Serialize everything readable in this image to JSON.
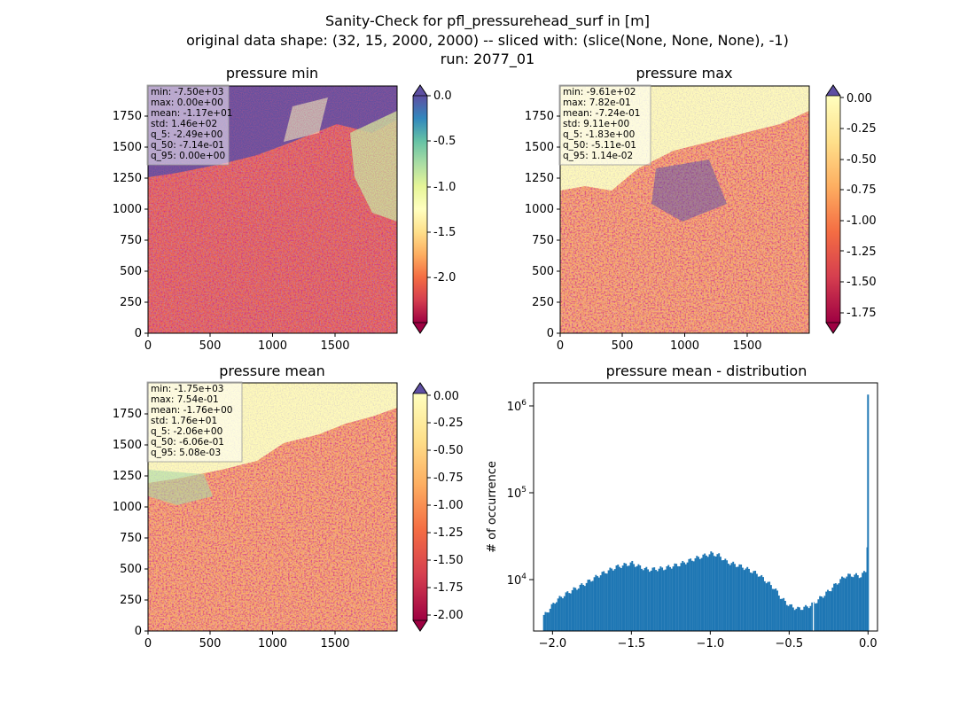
{
  "figure": {
    "title_line1": "Sanity-Check for pfl_pressurehead_surf in [m]",
    "title_line2": "original data shape: (32, 15, 2000, 2000) -- sliced with: (slice(None, None, None), -1)",
    "title_line3": "run: 2077_01"
  },
  "chart_data": [
    {
      "type": "heatmap",
      "title": "pressure min",
      "xlim": [
        0,
        2000
      ],
      "ylim": [
        0,
        2000
      ],
      "x_ticks": [
        0,
        500,
        1000,
        1500
      ],
      "y_ticks": [
        0,
        250,
        500,
        750,
        1000,
        1250,
        1500,
        1750
      ],
      "colormap": "Spectral",
      "extend": "both",
      "colorbar_range": [
        -2.5,
        0.0
      ],
      "colorbar_ticks": [
        "0.0",
        "-0.5",
        "-1.0",
        "-1.5",
        "-2.0"
      ],
      "stats": [
        "min: -7.50e+03",
        "max: 0.00e+00",
        "mean: -1.17e+01",
        "std: 1.46e+02",
        "q_5: -2.49e+00",
        "q_50: -7.14e-01",
        "q_95: 0.00e+00"
      ]
    },
    {
      "type": "heatmap",
      "title": "pressure max",
      "xlim": [
        0,
        2000
      ],
      "ylim": [
        0,
        2000
      ],
      "x_ticks": [
        0,
        500,
        1000,
        1500
      ],
      "y_ticks": [
        0,
        250,
        500,
        750,
        1000,
        1250,
        1500,
        1750
      ],
      "colormap": "Spectral",
      "extend": "both",
      "colorbar_range": [
        -1.83,
        0.02
      ],
      "colorbar_ticks": [
        "0.00",
        "-0.25",
        "-0.50",
        "-0.75",
        "-1.00",
        "-1.25",
        "-1.50",
        "-1.75"
      ],
      "stats": [
        "min: -9.61e+02",
        "max: 7.82e-01",
        "mean: -7.24e-01",
        "std: 9.11e+00",
        "q_5: -1.83e+00",
        "q_50: -5.11e-01",
        "q_95: 1.14e-02"
      ]
    },
    {
      "type": "heatmap",
      "title": "pressure mean",
      "xlim": [
        0,
        2000
      ],
      "ylim": [
        0,
        2000
      ],
      "x_ticks": [
        0,
        500,
        1000,
        1500
      ],
      "y_ticks": [
        0,
        250,
        500,
        750,
        1000,
        1250,
        1500,
        1750
      ],
      "colormap": "Spectral",
      "extend": "both",
      "colorbar_range": [
        -2.06,
        0.01
      ],
      "colorbar_ticks": [
        "0.00",
        "-0.25",
        "-0.50",
        "-0.75",
        "-1.00",
        "-1.25",
        "-1.50",
        "-1.75",
        "-2.00"
      ],
      "stats": [
        "min: -1.75e+03",
        "max: 7.54e-01",
        "mean: -1.76e+00",
        "std: 1.76e+01",
        "q_5: -2.06e+00",
        "q_50: -6.06e-01",
        "q_95: 5.08e-03"
      ]
    },
    {
      "type": "bar",
      "title": "pressure mean - distribution",
      "ylabel": "# of occurrence",
      "xlabel": "",
      "yscale": "log",
      "xlim": [
        -2.12,
        0.06
      ],
      "ylim": [
        2600,
        2000000
      ],
      "x_ticks": [
        "-2.0",
        "-1.5",
        "-1.0",
        "-0.5",
        "0.0"
      ],
      "x_tick_values": [
        -2.0,
        -1.5,
        -1.0,
        -0.5,
        0.0
      ],
      "y_ticks": [
        "10^4",
        "10^5",
        "10^6"
      ],
      "color": "#1f77b4",
      "bins": [
        [
          -2.06,
          3800
        ],
        [
          -1.98,
          5800
        ],
        [
          -1.9,
          7200
        ],
        [
          -1.8,
          9000
        ],
        [
          -1.7,
          11500
        ],
        [
          -1.6,
          14000
        ],
        [
          -1.5,
          15500
        ],
        [
          -1.45,
          14000
        ],
        [
          -1.4,
          13000
        ],
        [
          -1.3,
          13500
        ],
        [
          -1.2,
          15000
        ],
        [
          -1.1,
          17500
        ],
        [
          -1.0,
          20000
        ],
        [
          -0.95,
          19000
        ],
        [
          -0.9,
          16000
        ],
        [
          -0.8,
          14000
        ],
        [
          -0.7,
          11500
        ],
        [
          -0.6,
          8000
        ],
        [
          -0.55,
          6000
        ],
        [
          -0.5,
          5000
        ],
        [
          -0.45,
          4600
        ],
        [
          -0.4,
          4800
        ],
        [
          -0.35,
          5300
        ],
        [
          -0.3,
          6300
        ],
        [
          -0.25,
          7500
        ],
        [
          -0.2,
          9200
        ],
        [
          -0.15,
          11000
        ],
        [
          -0.1,
          11300
        ],
        [
          -0.05,
          11000
        ],
        [
          -0.02,
          12500
        ],
        [
          -0.01,
          25000
        ],
        [
          0.0,
          1350000
        ]
      ]
    }
  ]
}
